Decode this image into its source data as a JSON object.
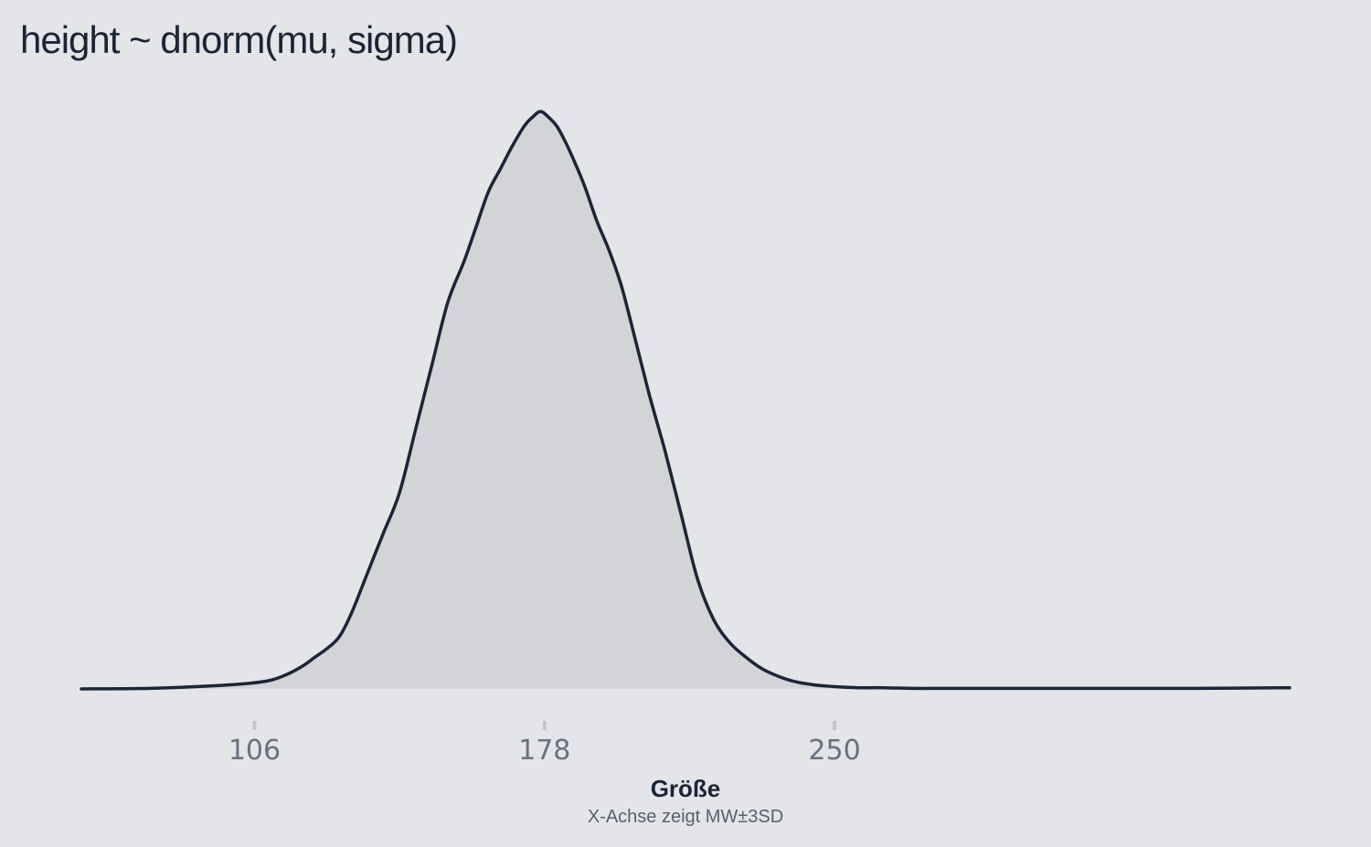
{
  "chart_data": {
    "type": "area",
    "title": "height ~ dnorm(mu, sigma)",
    "xlabel": "Größe",
    "xlabel_note": "X-Achse zeigt MW±3SD",
    "ylabel": "",
    "x_ticks": [
      106,
      178,
      250
    ],
    "xlim": [
      63,
      363
    ],
    "ylim": [
      0,
      1.0
    ],
    "grid": false,
    "legend": "none",
    "series": [
      {
        "x": [
          63,
          80,
          95,
          105,
          110,
          114,
          118,
          121,
          124,
          127,
          130,
          134,
          138,
          142,
          146,
          150,
          154,
          158,
          161,
          164,
          167,
          170,
          173,
          175,
          177,
          179,
          181,
          183,
          185,
          188,
          191,
          194,
          197,
          200,
          204,
          208,
          212,
          216,
          220,
          224,
          228,
          232,
          236,
          240,
          245,
          250,
          256,
          262,
          270,
          280,
          300,
          320,
          340,
          363
        ],
        "y": [
          0,
          0.001,
          0.005,
          0.01,
          0.015,
          0.025,
          0.04,
          0.055,
          0.07,
          0.09,
          0.13,
          0.2,
          0.27,
          0.34,
          0.45,
          0.56,
          0.67,
          0.74,
          0.8,
          0.86,
          0.9,
          0.94,
          0.975,
          0.99,
          1.0,
          0.99,
          0.975,
          0.95,
          0.92,
          0.87,
          0.81,
          0.76,
          0.7,
          0.62,
          0.51,
          0.41,
          0.3,
          0.19,
          0.12,
          0.08,
          0.055,
          0.035,
          0.022,
          0.013,
          0.007,
          0.004,
          0.002,
          0.002,
          0.001,
          0.001,
          0.001,
          0.001,
          0.001,
          0.002
        ]
      }
    ],
    "colors": {
      "background": "#e4e5e9",
      "line": "#1c2536",
      "fill": "#d3d4d8",
      "tick": "#c4c5c9",
      "tick_label": "#6b7080"
    }
  }
}
